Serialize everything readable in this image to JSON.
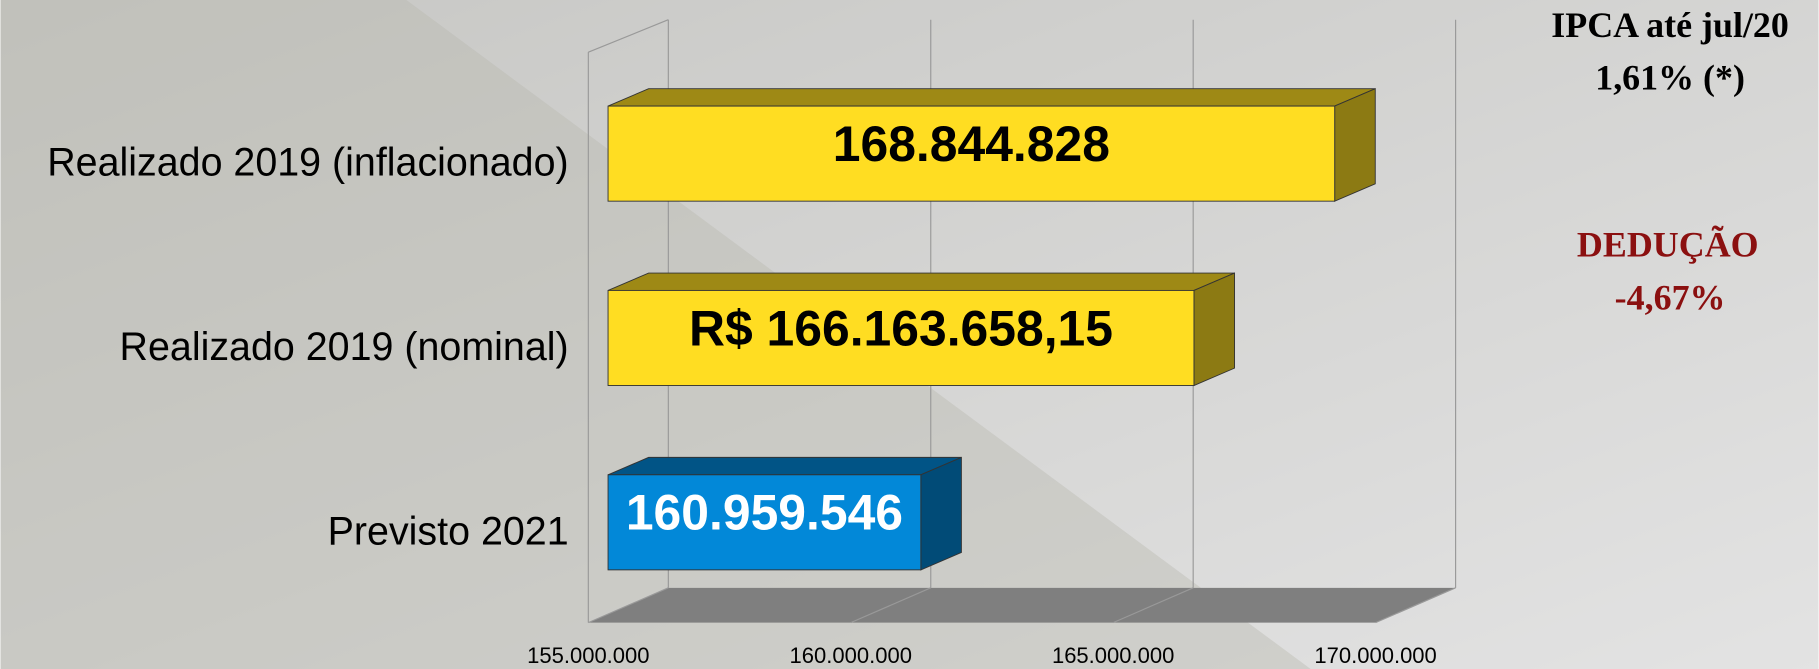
{
  "chart_data": {
    "type": "bar3d",
    "categories": [
      "Realizado 2019 (inflacionado)",
      "Realizado 2019 (nominal)",
      "Previsto 2021"
    ],
    "values": [
      168844828,
      166163658.15,
      160959546
    ],
    "value_labels": [
      "168.844.828",
      "R$ 166.163.658,15",
      "160.959.546"
    ],
    "colors": [
      "#ffdd22",
      "#ffdd22",
      "#0288d8"
    ],
    "xlim": [
      155000000,
      170000000
    ],
    "xticks": [
      {
        "value": 155000000,
        "label": "155.000.000"
      },
      {
        "value": 160000000,
        "label": "160.000.000"
      },
      {
        "value": 165000000,
        "label": "165.000.000"
      },
      {
        "value": 170000000,
        "label": "170.000.000"
      }
    ],
    "grid": true,
    "annotations": [
      "IPCA até jul/20",
      "1,61% (*)",
      "DEDUÇÃO",
      "-4,67%"
    ]
  }
}
